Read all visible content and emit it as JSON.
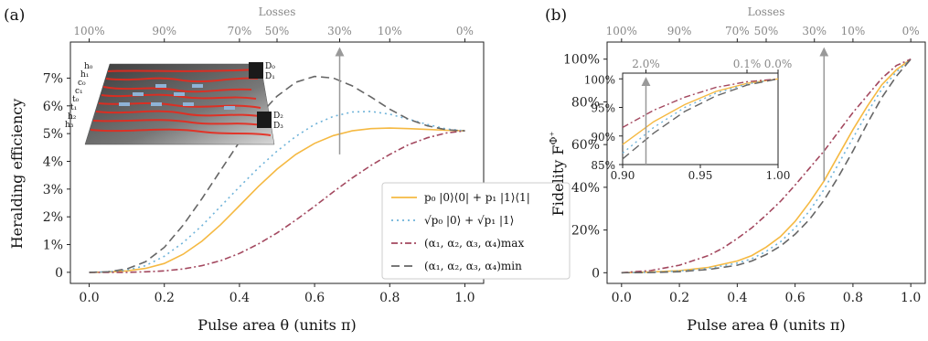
{
  "chart_data": [
    {
      "type": "line",
      "panel_label": "(a)",
      "xlabel": "Pulse area θ (units π)",
      "ylabel": "Heralding efficiency",
      "top_axis_label": "Losses",
      "top_ticks": [
        "100%",
        "90%",
        "70%",
        "50%",
        "30%",
        "10%",
        "0%"
      ],
      "top_tick_theta": [
        0.0,
        0.2,
        0.4,
        0.5,
        0.6667,
        0.8,
        1.0
      ],
      "xlim": [
        -0.05,
        1.05
      ],
      "ylim": [
        -0.4,
        8.3
      ],
      "xticks": [
        "0.0",
        "0.2",
        "0.4",
        "0.6",
        "0.8",
        "1.0"
      ],
      "yticks": [
        "0",
        "1%",
        "2%",
        "3%",
        "4%",
        "5%",
        "6%",
        "7%"
      ],
      "series": [
        {
          "name": "p₀ |0⟩⟨0| + p₁ |1⟩⟨1|",
          "color": "#f5b942",
          "dash": "solid",
          "x": [
            0.0,
            0.05,
            0.1,
            0.15,
            0.2,
            0.25,
            0.3,
            0.35,
            0.4,
            0.45,
            0.5,
            0.55,
            0.6,
            0.65,
            0.7,
            0.75,
            0.8,
            0.85,
            0.9,
            0.95,
            1.0
          ],
          "y": [
            0.0,
            0.01,
            0.05,
            0.14,
            0.32,
            0.65,
            1.12,
            1.72,
            2.4,
            3.09,
            3.72,
            4.25,
            4.65,
            4.93,
            5.1,
            5.18,
            5.2,
            5.18,
            5.15,
            5.12,
            5.1
          ]
        },
        {
          "name": "√p₀ |0⟩ + √p₁ |1⟩",
          "color": "#6fb3d9",
          "dash": "dotted",
          "x": [
            0.0,
            0.05,
            0.1,
            0.15,
            0.2,
            0.25,
            0.3,
            0.35,
            0.4,
            0.45,
            0.5,
            0.55,
            0.6,
            0.65,
            0.7,
            0.75,
            0.8,
            0.85,
            0.9,
            0.95,
            1.0
          ],
          "y": [
            0.0,
            0.02,
            0.08,
            0.24,
            0.58,
            1.07,
            1.68,
            2.38,
            3.08,
            3.76,
            4.37,
            4.9,
            5.33,
            5.62,
            5.78,
            5.8,
            5.7,
            5.52,
            5.33,
            5.17,
            5.1
          ]
        },
        {
          "name": "(α₁, α₂, α₃, α₄)max",
          "color": "#a3485f",
          "dash": "dashdot",
          "x": [
            0.0,
            0.1,
            0.15,
            0.2,
            0.25,
            0.3,
            0.35,
            0.4,
            0.45,
            0.5,
            0.55,
            0.6,
            0.65,
            0.7,
            0.75,
            0.8,
            0.85,
            0.9,
            0.95,
            1.0
          ],
          "y": [
            0.0,
            0.0,
            0.02,
            0.05,
            0.12,
            0.24,
            0.42,
            0.68,
            1.02,
            1.42,
            1.88,
            2.38,
            2.9,
            3.4,
            3.85,
            4.25,
            4.6,
            4.85,
            5.02,
            5.1
          ]
        },
        {
          "name": "(α₁, α₂, α₃, α₄)min",
          "color": "#666666",
          "dash": "dashed",
          "x": [
            0.0,
            0.05,
            0.1,
            0.15,
            0.2,
            0.25,
            0.3,
            0.35,
            0.4,
            0.45,
            0.5,
            0.55,
            0.6,
            0.65,
            0.7,
            0.75,
            0.8,
            0.85,
            0.9,
            0.95,
            1.0
          ],
          "y": [
            0.0,
            0.02,
            0.12,
            0.38,
            0.9,
            1.7,
            2.65,
            3.68,
            4.7,
            5.62,
            6.35,
            6.85,
            7.06,
            7.0,
            6.72,
            6.32,
            5.88,
            5.52,
            5.28,
            5.14,
            5.1
          ]
        }
      ],
      "arrow": {
        "x": 0.6667,
        "y_from": 4.25,
        "y_to": 8.15
      },
      "inset_chip_labels": [
        "h₀",
        "h₁",
        "c₀",
        "c₁",
        "t₀",
        "t₁",
        "h₂",
        "h₃",
        "D₀",
        "D₁",
        "D₂",
        "D₃"
      ]
    },
    {
      "type": "line",
      "panel_label": "(b)",
      "xlabel": "Pulse area θ (units π)",
      "ylabel": "Fidelity F",
      "ylabel_sub": "Φ⁺",
      "top_axis_label": "Losses",
      "top_ticks": [
        "100%",
        "90%",
        "70%",
        "50%",
        "30%",
        "10%",
        "0%"
      ],
      "top_tick_theta": [
        0.0,
        0.2,
        0.4,
        0.5,
        0.6667,
        0.8,
        1.0
      ],
      "xlim": [
        -0.05,
        1.05
      ],
      "ylim": [
        -5,
        108
      ],
      "xticks": [
        "0.0",
        "0.2",
        "0.4",
        "0.6",
        "0.8",
        "1.0"
      ],
      "yticks": [
        "0",
        "20%",
        "40%",
        "60%",
        "80%",
        "100%"
      ],
      "series": [
        {
          "name": "p₀ |0⟩⟨0| + p₁ |1⟩⟨1|",
          "color": "#f5b942",
          "dash": "solid",
          "x": [
            0.0,
            0.1,
            0.2,
            0.3,
            0.4,
            0.45,
            0.5,
            0.55,
            0.6,
            0.65,
            0.7,
            0.75,
            0.8,
            0.85,
            0.9,
            0.95,
            1.0
          ],
          "y": [
            0.0,
            0.3,
            1.0,
            2.5,
            5.5,
            8.0,
            12.0,
            17.0,
            24.0,
            33.0,
            43.0,
            55.0,
            67.0,
            78.0,
            88.0,
            95.0,
            100.0
          ]
        },
        {
          "name": "√p₀ |0⟩ + √p₁ |1⟩",
          "color": "#6fb3d9",
          "dash": "dotted",
          "x": [
            0.0,
            0.1,
            0.2,
            0.3,
            0.4,
            0.45,
            0.5,
            0.55,
            0.6,
            0.65,
            0.7,
            0.75,
            0.8,
            0.85,
            0.9,
            0.95,
            1.0
          ],
          "y": [
            0.0,
            0.2,
            0.8,
            2.0,
            4.5,
            6.5,
            10.0,
            14.5,
            21.0,
            29.0,
            39.0,
            51.0,
            63.0,
            75.0,
            86.0,
            94.0,
            100.0
          ]
        },
        {
          "name": "(α₁, α₂, α₃, α₄)max",
          "color": "#a3485f",
          "dash": "dashdot",
          "x": [
            0.0,
            0.1,
            0.2,
            0.3,
            0.35,
            0.4,
            0.45,
            0.5,
            0.55,
            0.6,
            0.65,
            0.7,
            0.75,
            0.8,
            0.85,
            0.9,
            0.95,
            1.0
          ],
          "y": [
            0.0,
            1.0,
            3.5,
            8.0,
            11.5,
            16.0,
            21.0,
            27.0,
            33.5,
            41.0,
            49.0,
            57.0,
            66.0,
            75.0,
            83.0,
            91.0,
            97.0,
            100.0
          ]
        },
        {
          "name": "(α₁, α₂, α₃, α₄)min",
          "color": "#666666",
          "dash": "dashed",
          "x": [
            0.0,
            0.1,
            0.2,
            0.3,
            0.4,
            0.45,
            0.5,
            0.55,
            0.6,
            0.65,
            0.7,
            0.75,
            0.8,
            0.85,
            0.9,
            0.95,
            1.0
          ],
          "y": [
            0.0,
            0.1,
            0.5,
            1.5,
            3.5,
            5.5,
            8.5,
            12.5,
            18.0,
            25.0,
            34.0,
            45.0,
            57.0,
            70.0,
            82.0,
            92.0,
            100.0
          ]
        }
      ],
      "arrow": {
        "x": 0.7,
        "y_from": 43,
        "y_to": 106
      },
      "inset": {
        "xlim": [
          0.9,
          1.0
        ],
        "ylim": [
          85,
          101
        ],
        "xticks": [
          "0.90",
          "0.95",
          "1.00"
        ],
        "yticks": [
          "85%",
          "90%",
          "95%",
          "100%"
        ],
        "top_ticks": [
          "2.0%",
          "0.1%",
          "0.0%"
        ],
        "top_tick_theta": [
          0.915,
          0.98,
          1.0
        ],
        "arrow": {
          "x": 0.915,
          "y_from": 85,
          "y_to": 100.5
        },
        "series": [
          {
            "color": "#f5b942",
            "dash": "solid",
            "x": [
              0.9,
              0.92,
              0.94,
              0.96,
              0.98,
              1.0
            ],
            "y": [
              88.5,
              92.5,
              95.5,
              97.8,
              99.2,
              100.0
            ]
          },
          {
            "color": "#6fb3d9",
            "dash": "dotted",
            "x": [
              0.9,
              0.92,
              0.94,
              0.96,
              0.98,
              1.0
            ],
            "y": [
              87.0,
              91.5,
              95.0,
              97.5,
              99.1,
              100.0
            ]
          },
          {
            "color": "#a3485f",
            "dash": "dashdot",
            "x": [
              0.9,
              0.92,
              0.94,
              0.96,
              0.98,
              1.0
            ],
            "y": [
              91.5,
              94.5,
              96.8,
              98.5,
              99.5,
              100.0
            ]
          },
          {
            "color": "#666666",
            "dash": "dashed",
            "x": [
              0.9,
              0.92,
              0.94,
              0.96,
              0.98,
              1.0
            ],
            "y": [
              86.0,
              90.5,
              94.3,
              97.0,
              98.9,
              100.0
            ]
          }
        ]
      }
    }
  ]
}
